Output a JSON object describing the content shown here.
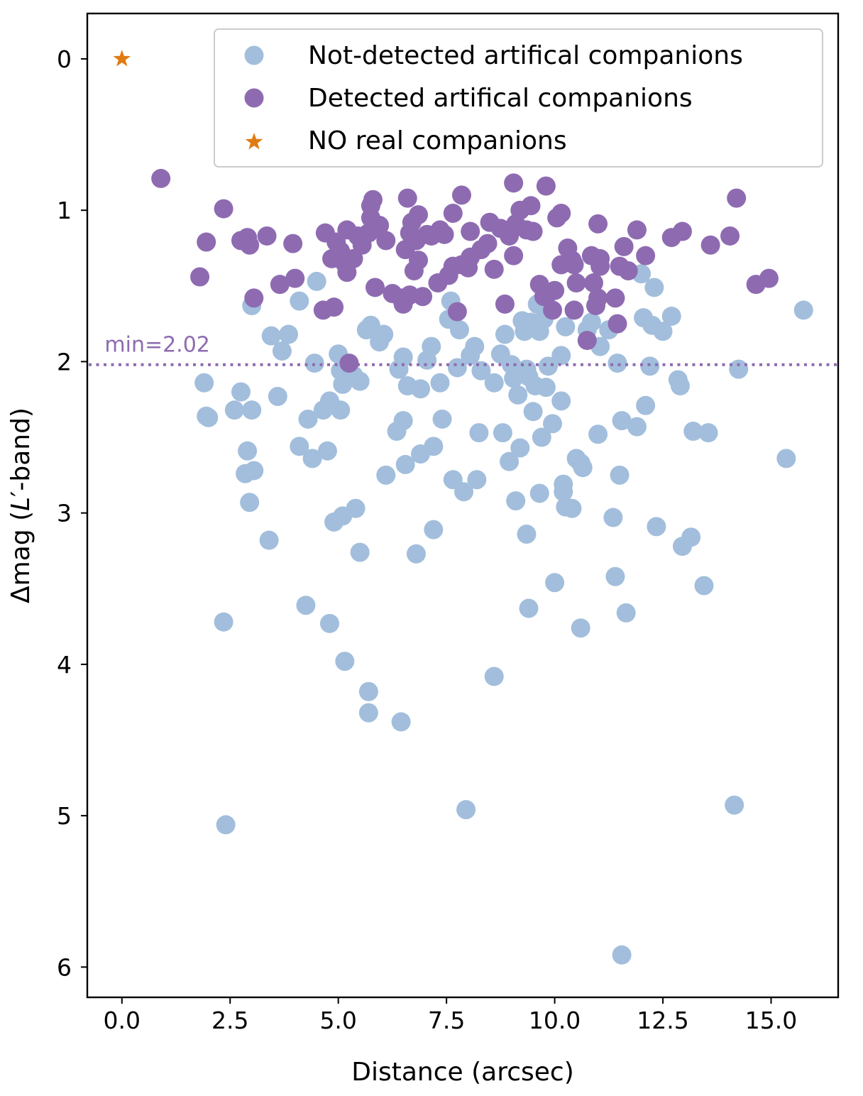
{
  "chart_data": {
    "type": "scatter",
    "title": "",
    "xlabel": "Distance (arcsec)",
    "ylabel_main": "Δmag (",
    "ylabel_italic": "L",
    "ylabel_prime": "′",
    "ylabel_end": "-band)",
    "xlim": [
      -0.8,
      16.55
    ],
    "ylim": [
      6.2,
      -0.3
    ],
    "y_inverted": true,
    "x_ticks": [
      0.0,
      2.5,
      5.0,
      7.5,
      10.0,
      12.5,
      15.0
    ],
    "x_tick_labels": [
      "0.0",
      "2.5",
      "5.0",
      "7.5",
      "10.0",
      "12.5",
      "15.0"
    ],
    "y_ticks": [
      0,
      1,
      2,
      3,
      4,
      5,
      6
    ],
    "y_tick_labels": [
      "0",
      "1",
      "2",
      "3",
      "4",
      "5",
      "6"
    ],
    "grid": false,
    "legend_position": "top-right",
    "threshold": {
      "value": 2.02,
      "label": "min=2.02",
      "color": "#8e6bb1",
      "style": "dotted"
    },
    "series": [
      {
        "name": "Not-detected artifical companions",
        "marker": "circle",
        "color": "#a2bedc",
        "points": [
          [
            1.9,
            2.14
          ],
          [
            1.95,
            2.36
          ],
          [
            2.0,
            2.37
          ],
          [
            2.35,
            3.72
          ],
          [
            2.4,
            5.06
          ],
          [
            2.6,
            2.32
          ],
          [
            2.75,
            2.2
          ],
          [
            2.85,
            2.74
          ],
          [
            2.9,
            2.59
          ],
          [
            2.95,
            2.93
          ],
          [
            3.0,
            2.32
          ],
          [
            3.05,
            2.72
          ],
          [
            3.0,
            1.63
          ],
          [
            3.4,
            3.18
          ],
          [
            3.45,
            1.83
          ],
          [
            3.6,
            2.23
          ],
          [
            3.7,
            1.93
          ],
          [
            3.85,
            1.82
          ],
          [
            4.1,
            1.6
          ],
          [
            4.1,
            2.56
          ],
          [
            4.25,
            3.61
          ],
          [
            4.3,
            2.38
          ],
          [
            4.4,
            2.64
          ],
          [
            4.45,
            2.01
          ],
          [
            4.5,
            1.47
          ],
          [
            4.65,
            2.32
          ],
          [
            4.75,
            2.59
          ],
          [
            4.8,
            2.26
          ],
          [
            4.8,
            3.73
          ],
          [
            4.9,
            3.06
          ],
          [
            5.05,
            2.32
          ],
          [
            5.0,
            1.95
          ],
          [
            5.05,
            2.06
          ],
          [
            5.1,
            2.15
          ],
          [
            5.1,
            3.02
          ],
          [
            5.15,
            3.98
          ],
          [
            5.35,
            2.09
          ],
          [
            5.4,
            2.97
          ],
          [
            5.5,
            2.13
          ],
          [
            5.5,
            3.26
          ],
          [
            5.65,
            1.79
          ],
          [
            5.7,
            4.32
          ],
          [
            5.7,
            4.18
          ],
          [
            5.75,
            1.76
          ],
          [
            5.95,
            1.87
          ],
          [
            6.05,
            1.82
          ],
          [
            6.1,
            2.75
          ],
          [
            6.35,
            2.46
          ],
          [
            6.4,
            2.05
          ],
          [
            6.45,
            4.38
          ],
          [
            6.5,
            2.39
          ],
          [
            6.5,
            1.97
          ],
          [
            6.55,
            2.68
          ],
          [
            6.6,
            2.16
          ],
          [
            6.8,
            3.27
          ],
          [
            6.9,
            2.61
          ],
          [
            6.9,
            2.18
          ],
          [
            7.05,
            1.99
          ],
          [
            7.15,
            1.9
          ],
          [
            7.2,
            2.56
          ],
          [
            7.2,
            3.11
          ],
          [
            7.35,
            2.14
          ],
          [
            7.4,
            2.38
          ],
          [
            7.55,
            1.72
          ],
          [
            7.6,
            1.6
          ],
          [
            7.65,
            2.78
          ],
          [
            7.75,
            2.04
          ],
          [
            7.8,
            1.79
          ],
          [
            7.9,
            2.86
          ],
          [
            7.95,
            4.96
          ],
          [
            8.05,
            1.96
          ],
          [
            8.15,
            1.9
          ],
          [
            8.2,
            2.78
          ],
          [
            8.25,
            2.47
          ],
          [
            8.3,
            2.06
          ],
          [
            8.6,
            2.14
          ],
          [
            8.6,
            4.08
          ],
          [
            8.75,
            1.95
          ],
          [
            8.8,
            2.47
          ],
          [
            8.85,
            1.82
          ],
          [
            8.95,
            2.66
          ],
          [
            9.0,
            2.02
          ],
          [
            9.05,
            2.11
          ],
          [
            9.1,
            2.92
          ],
          [
            9.15,
            2.22
          ],
          [
            9.2,
            2.57
          ],
          [
            9.25,
            1.73
          ],
          [
            9.3,
            1.8
          ],
          [
            9.35,
            3.14
          ],
          [
            9.35,
            2.05
          ],
          [
            9.4,
            2.1
          ],
          [
            9.4,
            3.63
          ],
          [
            9.45,
            1.74
          ],
          [
            9.5,
            2.33
          ],
          [
            9.55,
            2.16
          ],
          [
            9.6,
            1.62
          ],
          [
            9.65,
            1.8
          ],
          [
            9.65,
            2.87
          ],
          [
            9.7,
            2.5
          ],
          [
            9.75,
            1.72
          ],
          [
            9.8,
            2.17
          ],
          [
            9.85,
            2.03
          ],
          [
            9.95,
            2.41
          ],
          [
            10.0,
            3.46
          ],
          [
            10.15,
            2.26
          ],
          [
            10.15,
            1.96
          ],
          [
            10.2,
            2.81
          ],
          [
            10.2,
            2.86
          ],
          [
            10.25,
            2.96
          ],
          [
            10.25,
            1.77
          ],
          [
            10.4,
            2.97
          ],
          [
            10.5,
            2.64
          ],
          [
            10.6,
            2.67
          ],
          [
            10.6,
            3.76
          ],
          [
            10.65,
            2.7
          ],
          [
            10.75,
            1.79
          ],
          [
            10.85,
            1.74
          ],
          [
            11.0,
            2.48
          ],
          [
            11.05,
            1.9
          ],
          [
            11.25,
            1.79
          ],
          [
            11.35,
            3.03
          ],
          [
            11.4,
            3.42
          ],
          [
            11.45,
            2.01
          ],
          [
            11.5,
            2.75
          ],
          [
            11.55,
            2.39
          ],
          [
            11.55,
            5.92
          ],
          [
            11.65,
            3.66
          ],
          [
            11.9,
            2.43
          ],
          [
            12.0,
            1.42
          ],
          [
            12.05,
            1.71
          ],
          [
            12.1,
            2.29
          ],
          [
            12.2,
            2.03
          ],
          [
            12.25,
            1.76
          ],
          [
            12.3,
            1.51
          ],
          [
            12.35,
            3.09
          ],
          [
            12.5,
            1.8
          ],
          [
            12.7,
            1.7
          ],
          [
            12.85,
            2.12
          ],
          [
            12.9,
            2.16
          ],
          [
            12.95,
            3.22
          ],
          [
            13.15,
            3.16
          ],
          [
            13.2,
            2.46
          ],
          [
            13.45,
            3.48
          ],
          [
            13.55,
            2.47
          ],
          [
            14.15,
            4.93
          ],
          [
            14.25,
            2.05
          ],
          [
            15.35,
            2.64
          ],
          [
            15.75,
            1.66
          ]
        ]
      },
      {
        "name": "Detected artifical companions",
        "marker": "circle",
        "color": "#8e6bb1",
        "points": [
          [
            0.9,
            0.79
          ],
          [
            1.8,
            1.44
          ],
          [
            1.95,
            1.21
          ],
          [
            2.35,
            0.99
          ],
          [
            2.75,
            1.2
          ],
          [
            2.9,
            1.18
          ],
          [
            2.95,
            1.23
          ],
          [
            3.05,
            1.58
          ],
          [
            3.35,
            1.17
          ],
          [
            3.65,
            1.49
          ],
          [
            3.95,
            1.22
          ],
          [
            4.0,
            1.45
          ],
          [
            4.65,
            1.66
          ],
          [
            4.7,
            1.15
          ],
          [
            4.85,
            1.32
          ],
          [
            4.9,
            1.64
          ],
          [
            4.95,
            1.21
          ],
          [
            5.05,
            1.27
          ],
          [
            5.15,
            1.35
          ],
          [
            5.2,
            1.41
          ],
          [
            5.2,
            1.13
          ],
          [
            5.25,
            2.01
          ],
          [
            5.35,
            1.32
          ],
          [
            5.45,
            1.17
          ],
          [
            5.55,
            1.23
          ],
          [
            5.7,
            1.15
          ],
          [
            5.75,
            0.97
          ],
          [
            5.75,
            1.05
          ],
          [
            5.8,
            0.93
          ],
          [
            5.85,
            1.51
          ],
          [
            5.95,
            1.1
          ],
          [
            6.1,
            1.2
          ],
          [
            6.25,
            1.55
          ],
          [
            6.45,
            1.58
          ],
          [
            6.5,
            1.62
          ],
          [
            6.55,
            1.26
          ],
          [
            6.6,
            0.92
          ],
          [
            6.65,
            1.15
          ],
          [
            6.65,
            1.56
          ],
          [
            6.7,
            1.08
          ],
          [
            6.75,
            1.4
          ],
          [
            6.8,
            1.2
          ],
          [
            6.85,
            1.03
          ],
          [
            6.85,
            1.33
          ],
          [
            6.95,
            1.57
          ],
          [
            7.05,
            1.16
          ],
          [
            7.15,
            1.17
          ],
          [
            7.3,
            1.48
          ],
          [
            7.35,
            1.13
          ],
          [
            7.45,
            1.16
          ],
          [
            7.55,
            1.43
          ],
          [
            7.65,
            1.02
          ],
          [
            7.65,
            1.37
          ],
          [
            7.75,
            1.67
          ],
          [
            7.85,
            1.36
          ],
          [
            7.85,
            0.9
          ],
          [
            8.0,
            1.38
          ],
          [
            8.05,
            1.31
          ],
          [
            8.05,
            1.14
          ],
          [
            8.3,
            1.26
          ],
          [
            8.45,
            1.22
          ],
          [
            8.5,
            1.08
          ],
          [
            8.6,
            1.39
          ],
          [
            8.75,
            1.12
          ],
          [
            8.85,
            1.62
          ],
          [
            8.95,
            1.17
          ],
          [
            9.05,
            0.82
          ],
          [
            9.05,
            1.3
          ],
          [
            9.1,
            1.09
          ],
          [
            9.2,
            1.0
          ],
          [
            9.35,
            1.13
          ],
          [
            9.45,
            0.97
          ],
          [
            9.5,
            1.14
          ],
          [
            9.65,
            1.49
          ],
          [
            9.75,
            1.57
          ],
          [
            9.8,
            0.84
          ],
          [
            9.85,
            1.55
          ],
          [
            9.95,
            1.66
          ],
          [
            10.0,
            1.53
          ],
          [
            10.05,
            1.05
          ],
          [
            10.15,
            1.36
          ],
          [
            10.15,
            1.02
          ],
          [
            10.3,
            1.25
          ],
          [
            10.4,
            1.33
          ],
          [
            10.45,
            1.36
          ],
          [
            10.45,
            1.66
          ],
          [
            10.5,
            1.48
          ],
          [
            10.75,
            1.86
          ],
          [
            10.85,
            1.3
          ],
          [
            10.9,
            1.48
          ],
          [
            10.95,
            1.63
          ],
          [
            11.0,
            1.58
          ],
          [
            11.0,
            1.09
          ],
          [
            11.05,
            1.37
          ],
          [
            11.05,
            1.32
          ],
          [
            11.4,
            1.58
          ],
          [
            11.45,
            1.75
          ],
          [
            11.5,
            1.37
          ],
          [
            11.6,
            1.24
          ],
          [
            11.7,
            1.4
          ],
          [
            11.9,
            1.13
          ],
          [
            12.1,
            1.3
          ],
          [
            12.7,
            1.18
          ],
          [
            12.95,
            1.14
          ],
          [
            13.6,
            1.23
          ],
          [
            14.05,
            1.17
          ],
          [
            14.2,
            0.92
          ],
          [
            14.65,
            1.49
          ],
          [
            14.95,
            1.45
          ]
        ]
      },
      {
        "name": "NO real companions",
        "marker": "star",
        "color": "#e07b13",
        "points": [
          [
            0.0,
            0.0
          ]
        ]
      }
    ]
  }
}
